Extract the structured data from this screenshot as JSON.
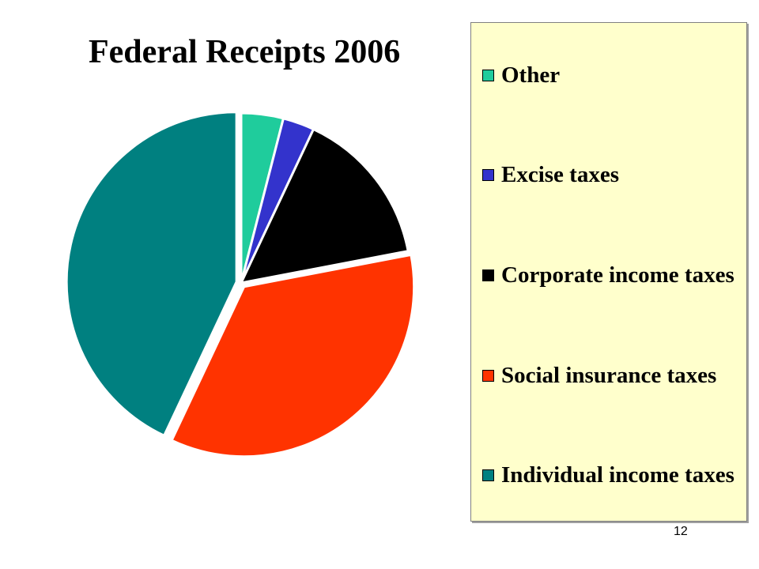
{
  "slide": {
    "page_number": "12"
  },
  "chart_data": {
    "type": "pie",
    "title": "Federal Receipts 2006",
    "start_angle_deg": 0,
    "direction": "clockwise",
    "slices": [
      {
        "label": "Other",
        "value": 4,
        "color": "#1fcc9c",
        "exploded": false
      },
      {
        "label": "Excise taxes",
        "value": 3,
        "color": "#3333cc",
        "exploded": false
      },
      {
        "label": "Corporate income taxes",
        "value": 15,
        "color": "#000000",
        "exploded": false
      },
      {
        "label": "Social insurance taxes",
        "value": 35,
        "color": "#ff3300",
        "exploded": true
      },
      {
        "label": "Individual income taxes",
        "value": 43,
        "color": "#008080",
        "exploded": true
      }
    ],
    "legend": {
      "position": "right",
      "background": "#ffffcc",
      "order": [
        "Other",
        "Excise taxes",
        "Corporate income taxes",
        "Social insurance taxes",
        "Individual income taxes"
      ]
    }
  }
}
